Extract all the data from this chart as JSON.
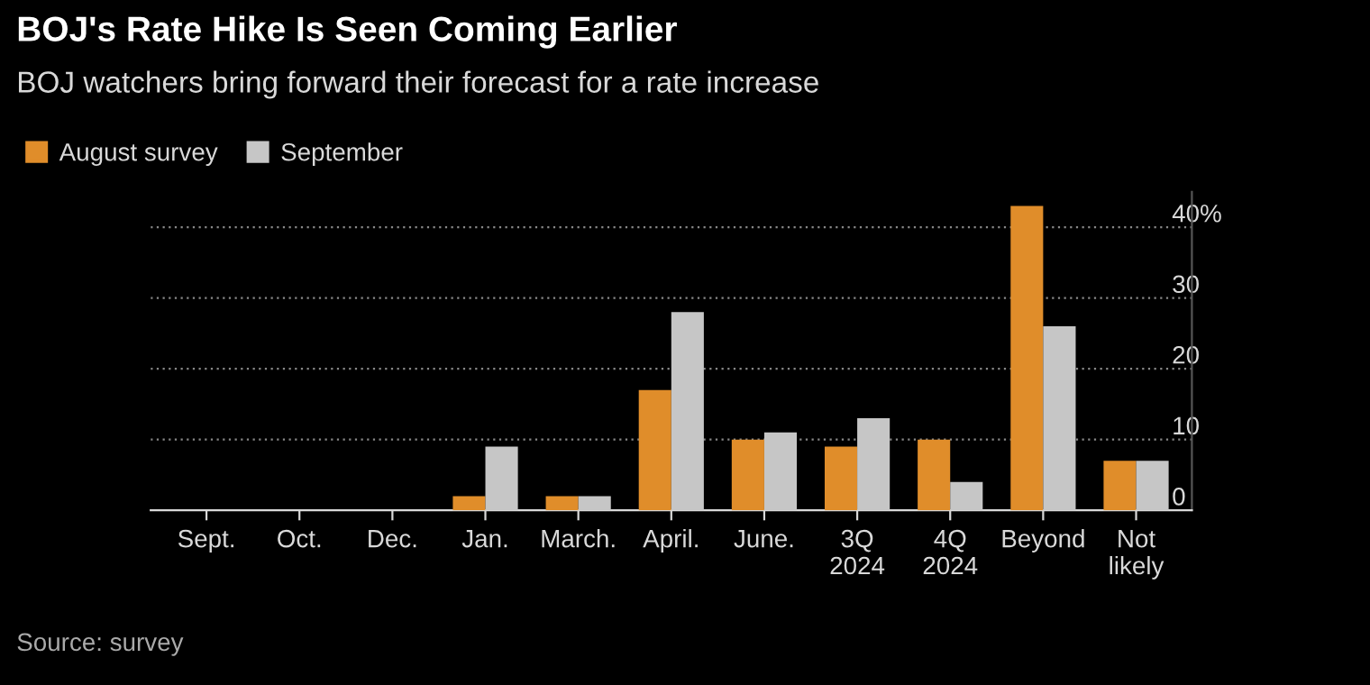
{
  "chart_data": {
    "type": "bar",
    "title": "BOJ's Rate Hike Is Seen Coming Earlier",
    "subtitle": "BOJ watchers bring forward their forecast for a rate increase",
    "categories": [
      "Sept.",
      "Oct.",
      "Dec.",
      "Jan.",
      "March.",
      "April.",
      "June.",
      "3Q\n2024",
      "4Q\n2024",
      "Beyond",
      "Not\nlikely"
    ],
    "series": [
      {
        "name": "August survey",
        "color": "#e08d2a",
        "values": [
          0,
          0,
          0,
          2,
          2,
          17,
          10,
          9,
          10,
          43,
          7
        ]
      },
      {
        "name": "September",
        "color": "#c6c6c6",
        "values": [
          0,
          0,
          0,
          9,
          2,
          28,
          11,
          13,
          4,
          26,
          7
        ]
      }
    ],
    "ylim": [
      0,
      45
    ],
    "yticks": [
      0,
      10,
      20,
      30,
      {
        "value": 40,
        "label": "40%"
      }
    ],
    "grid": "y",
    "legend": "top left",
    "annotations": [
      "Source: survey"
    ]
  }
}
